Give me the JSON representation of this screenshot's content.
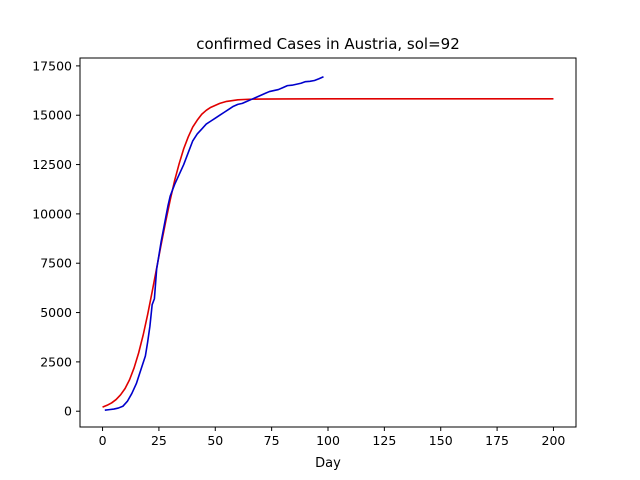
{
  "chart_data": {
    "type": "line",
    "title": "confirmed Cases in Austria, sol=92",
    "xlabel": "Day",
    "ylabel": "",
    "xlim": [
      -10,
      210
    ],
    "ylim": [
      -800,
      17900
    ],
    "xticks": [
      0,
      25,
      50,
      75,
      100,
      125,
      150,
      175,
      200
    ],
    "yticks": [
      0,
      2500,
      5000,
      7500,
      10000,
      12500,
      15000,
      17500
    ],
    "grid": false,
    "legend": "none",
    "series": [
      {
        "color": "#e00000",
        "x": [
          0,
          2,
          4,
          6,
          8,
          10,
          12,
          14,
          16,
          18,
          20,
          22,
          24,
          26,
          28,
          30,
          32,
          34,
          36,
          38,
          40,
          42,
          44,
          46,
          48,
          50,
          52,
          55,
          60,
          65,
          70,
          80,
          100,
          125,
          150,
          175,
          200
        ],
        "y": [
          210,
          300,
          420,
          590,
          830,
          1150,
          1600,
          2200,
          2950,
          3850,
          4900,
          6050,
          7250,
          8450,
          9600,
          10700,
          11700,
          12550,
          13300,
          13900,
          14400,
          14750,
          15050,
          15250,
          15400,
          15500,
          15600,
          15700,
          15780,
          15810,
          15820,
          15825,
          15830,
          15830,
          15830,
          15830,
          15830
        ]
      },
      {
        "color": "#0000cc",
        "x": [
          1,
          3,
          5,
          7,
          9,
          11,
          13,
          15,
          17,
          19,
          20,
          21,
          22,
          23,
          24,
          25,
          26,
          27,
          28,
          29,
          30,
          31,
          32,
          34,
          36,
          38,
          40,
          42,
          44,
          46,
          48,
          50,
          52,
          54,
          56,
          58,
          60,
          62,
          64,
          66,
          68,
          70,
          72,
          74,
          76,
          78,
          80,
          82,
          84,
          86,
          88,
          90,
          92,
          94,
          96,
          98
        ],
        "y": [
          50,
          80,
          110,
          160,
          250,
          500,
          900,
          1400,
          2100,
          2800,
          3500,
          4300,
          5400,
          5700,
          7200,
          7900,
          8600,
          9200,
          9800,
          10400,
          10900,
          11200,
          11500,
          12000,
          12500,
          13100,
          13700,
          14050,
          14300,
          14550,
          14700,
          14850,
          15000,
          15150,
          15300,
          15450,
          15550,
          15600,
          15700,
          15800,
          15900,
          16000,
          16100,
          16200,
          16250,
          16300,
          16400,
          16500,
          16520,
          16570,
          16620,
          16700,
          16720,
          16760,
          16850,
          16950
        ]
      }
    ]
  }
}
